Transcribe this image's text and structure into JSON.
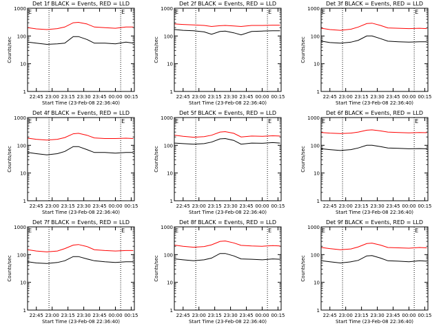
{
  "figure": {
    "background": "#ffffff",
    "axis_color": "#000000",
    "events_color": "#000000",
    "lld_color": "#ff0000",
    "marker_label": "E"
  },
  "chart_data": [
    {
      "type": "line",
      "title": "Det 1f BLACK = Events, RED = LLD",
      "xlabel": "Start Time (23-Feb-08 22:36:40)",
      "ylabel": "Counts/sec",
      "yscale": "log",
      "ylim": [
        1,
        1000
      ],
      "y_ticks": [
        "1",
        "10",
        "100",
        "1000"
      ],
      "x_ticks": [
        "22:45",
        "23:00",
        "23:15",
        "23:30",
        "23:45",
        "00:00",
        "00:15"
      ],
      "x_start": "22:36:40",
      "x_end": "00:18:00",
      "vlines": [
        "22:57:00",
        "00:05:00"
      ],
      "markers": [
        {
          "label": "E",
          "x": "22:36:40"
        },
        {
          "label": "E",
          "x": "00:05:00"
        }
      ],
      "x": [
        "22:37",
        "22:45",
        "22:55",
        "23:05",
        "23:12",
        "23:20",
        "23:25",
        "23:33",
        "23:40",
        "23:50",
        "00:00",
        "00:10",
        "00:17"
      ],
      "series": [
        {
          "values": [
            60,
            55,
            50,
            52,
            55,
            95,
            95,
            75,
            55,
            55,
            52,
            60,
            55
          ],
          "color": "#000000"
        },
        {
          "values": [
            200,
            180,
            170,
            185,
            210,
            300,
            310,
            270,
            210,
            200,
            190,
            210,
            210
          ],
          "color": "#ff0000"
        }
      ]
    },
    {
      "type": "line",
      "title": "Det 2f BLACK = Events, RED = LLD",
      "xlabel": "Start Time (23-Feb-08 22:36:40)",
      "ylabel": "Counts/sec",
      "yscale": "log",
      "ylim": [
        1,
        1000
      ],
      "y_ticks": [
        "1",
        "10",
        "100",
        "1000"
      ],
      "x_ticks": [
        "22:45",
        "23:00",
        "23:15",
        "23:30",
        "23:45",
        "00:00",
        "00:15"
      ],
      "x_start": "22:36:40",
      "x_end": "00:18:00",
      "vlines": [
        "22:57:00",
        "00:05:00"
      ],
      "markers": [
        {
          "label": "E",
          "x": "22:36:40"
        },
        {
          "label": "E",
          "x": "00:05:00"
        }
      ],
      "x": [
        "22:37",
        "22:45",
        "22:55",
        "23:05",
        "23:12",
        "23:20",
        "23:25",
        "23:33",
        "23:40",
        "23:50",
        "00:00",
        "00:10",
        "00:17"
      ],
      "series": [
        {
          "values": [
            170,
            160,
            155,
            140,
            115,
            145,
            150,
            130,
            110,
            145,
            150,
            155,
            155
          ],
          "color": "#000000"
        },
        {
          "values": [
            270,
            260,
            250,
            240,
            220,
            235,
            240,
            230,
            220,
            240,
            240,
            245,
            245
          ],
          "color": "#ff0000"
        }
      ]
    },
    {
      "type": "line",
      "title": "Det 3f BLACK = Events, RED = LLD",
      "xlabel": "Start Time (23-Feb-08 22:36:40)",
      "ylabel": "Counts/sec",
      "yscale": "log",
      "ylim": [
        1,
        1000
      ],
      "y_ticks": [
        "1",
        "10",
        "100",
        "1000"
      ],
      "x_ticks": [
        "22:45",
        "23:00",
        "23:15",
        "23:30",
        "23:45",
        "00:00",
        "00:15"
      ],
      "x_start": "22:36:40",
      "x_end": "00:18:00",
      "vlines": [
        "22:57:00",
        "00:05:00"
      ],
      "markers": [
        {
          "label": "E",
          "x": "22:36:40"
        },
        {
          "label": "E",
          "x": "00:05:00"
        }
      ],
      "x": [
        "22:37",
        "22:45",
        "22:55",
        "23:05",
        "23:12",
        "23:20",
        "23:25",
        "23:33",
        "23:40",
        "23:50",
        "00:00",
        "00:10",
        "00:17"
      ],
      "series": [
        {
          "values": [
            65,
            58,
            55,
            60,
            70,
            100,
            100,
            80,
            65,
            62,
            60,
            62,
            62
          ],
          "color": "#000000"
        },
        {
          "values": [
            190,
            170,
            160,
            175,
            210,
            280,
            290,
            240,
            195,
            190,
            185,
            190,
            185
          ],
          "color": "#ff0000"
        }
      ]
    },
    {
      "type": "line",
      "title": "Det 4f BLACK = Events, RED = LLD",
      "xlabel": "Start Time (23-Feb-08 22:36:40)",
      "ylabel": "Counts/sec",
      "yscale": "log",
      "ylim": [
        1,
        1000
      ],
      "y_ticks": [
        "1",
        "10",
        "100",
        "1000"
      ],
      "x_ticks": [
        "22:45",
        "23:00",
        "23:15",
        "23:30",
        "23:45",
        "00:00",
        "00:15"
      ],
      "x_start": "22:36:40",
      "x_end": "00:18:00",
      "vlines": [
        "22:57:00",
        "00:05:00"
      ],
      "markers": [
        {
          "label": "E",
          "x": "22:36:40"
        },
        {
          "label": "E",
          "x": "00:05:00"
        }
      ],
      "x": [
        "22:37",
        "22:45",
        "22:55",
        "23:05",
        "23:12",
        "23:20",
        "23:25",
        "23:33",
        "23:40",
        "23:50",
        "00:00",
        "00:10",
        "00:17"
      ],
      "series": [
        {
          "values": [
            55,
            50,
            45,
            50,
            60,
            90,
            90,
            70,
            55,
            55,
            52,
            55,
            55
          ],
          "color": "#000000"
        },
        {
          "values": [
            180,
            165,
            155,
            165,
            190,
            260,
            270,
            230,
            185,
            175,
            175,
            180,
            175
          ],
          "color": "#ff0000"
        }
      ]
    },
    {
      "type": "line",
      "title": "Det 5f BLACK = Events, RED = LLD",
      "xlabel": "Start Time (23-Feb-08 22:36:40)",
      "ylabel": "Counts/sec",
      "yscale": "log",
      "ylim": [
        1,
        1000
      ],
      "y_ticks": [
        "1",
        "10",
        "100",
        "1000"
      ],
      "x_ticks": [
        "22:45",
        "23:00",
        "23:15",
        "23:30",
        "23:45",
        "00:00",
        "00:15"
      ],
      "x_start": "22:36:40",
      "x_end": "00:18:00",
      "vlines": [
        "22:57:00",
        "00:05:00"
      ],
      "markers": [
        {
          "label": "E",
          "x": "22:36:40"
        },
        {
          "label": "E",
          "x": "00:05:00"
        }
      ],
      "x": [
        "22:37",
        "22:45",
        "22:55",
        "23:05",
        "23:12",
        "23:20",
        "23:25",
        "23:33",
        "23:40",
        "23:50",
        "00:00",
        "00:10",
        "00:17"
      ],
      "series": [
        {
          "values": [
            120,
            115,
            110,
            115,
            130,
            170,
            175,
            150,
            110,
            120,
            118,
            125,
            120
          ],
          "color": "#000000"
        },
        {
          "values": [
            230,
            210,
            195,
            205,
            230,
            300,
            310,
            270,
            200,
            215,
            210,
            220,
            215
          ],
          "color": "#ff0000"
        }
      ]
    },
    {
      "type": "line",
      "title": "Det 6f BLACK = Events, RED = LLD",
      "xlabel": "Start Time (23-Feb-08 22:36:40)",
      "ylabel": "Counts/sec",
      "yscale": "log",
      "ylim": [
        1,
        1000
      ],
      "y_ticks": [
        "1",
        "10",
        "100",
        "1000"
      ],
      "x_ticks": [
        "22:45",
        "23:00",
        "23:15",
        "23:30",
        "23:45",
        "00:00",
        "00:15"
      ],
      "x_start": "22:36:40",
      "x_end": "00:18:00",
      "vlines": [
        "22:57:00",
        "00:05:00"
      ],
      "markers": [
        {
          "label": "E",
          "x": "22:36:40"
        },
        {
          "label": "E",
          "x": "00:05:00"
        }
      ],
      "x": [
        "22:37",
        "22:45",
        "22:55",
        "23:05",
        "23:12",
        "23:20",
        "23:25",
        "23:33",
        "23:40",
        "23:50",
        "00:00",
        "00:10",
        "00:17"
      ],
      "series": [
        {
          "values": [
            75,
            70,
            65,
            70,
            80,
            100,
            100,
            90,
            80,
            78,
            75,
            76,
            75
          ],
          "color": "#000000"
        },
        {
          "values": [
            290,
            275,
            265,
            275,
            300,
            350,
            360,
            330,
            300,
            290,
            280,
            290,
            285
          ],
          "color": "#ff0000"
        }
      ]
    },
    {
      "type": "line",
      "title": "Det 7f BLACK = Events, RED = LLD",
      "xlabel": "Start Time (23-Feb-08 22:36:40)",
      "ylabel": "Counts/sec",
      "yscale": "log",
      "ylim": [
        1,
        1000
      ],
      "y_ticks": [
        "1",
        "10",
        "100",
        "1000"
      ],
      "x_ticks": [
        "22:45",
        "23:00",
        "23:15",
        "23:30",
        "23:45",
        "00:00",
        "00:15"
      ],
      "x_start": "22:36:40",
      "x_end": "00:18:00",
      "vlines": [
        "22:57:00",
        "00:05:00"
      ],
      "markers": [
        {
          "label": "E",
          "x": "22:36:40"
        },
        {
          "label": "E",
          "x": "00:05:00"
        }
      ],
      "x": [
        "22:37",
        "22:45",
        "22:55",
        "23:05",
        "23:12",
        "23:20",
        "23:25",
        "23:33",
        "23:40",
        "23:50",
        "00:00",
        "00:10",
        "00:17"
      ],
      "series": [
        {
          "values": [
            55,
            50,
            48,
            52,
            60,
            85,
            85,
            70,
            60,
            55,
            52,
            55,
            55
          ],
          "color": "#000000"
        },
        {
          "values": [
            150,
            135,
            125,
            135,
            165,
            220,
            230,
            195,
            150,
            140,
            135,
            140,
            140
          ],
          "color": "#ff0000"
        }
      ]
    },
    {
      "type": "line",
      "title": "Det 8f BLACK = Events, RED = LLD",
      "xlabel": "Start Time (23-Feb-08 22:36:40)",
      "ylabel": "Counts/sec",
      "yscale": "log",
      "ylim": [
        1,
        1000
      ],
      "y_ticks": [
        "1",
        "10",
        "100",
        "1000"
      ],
      "x_ticks": [
        "22:45",
        "23:00",
        "23:15",
        "23:30",
        "23:45",
        "00:00",
        "00:15"
      ],
      "x_start": "22:36:40",
      "x_end": "00:18:00",
      "vlines": [
        "22:57:00",
        "00:05:00"
      ],
      "markers": [
        {
          "label": "E",
          "x": "22:36:40"
        },
        {
          "label": "E",
          "x": "00:05:00"
        }
      ],
      "x": [
        "22:37",
        "22:45",
        "22:55",
        "23:05",
        "23:12",
        "23:20",
        "23:25",
        "23:33",
        "23:40",
        "23:50",
        "00:00",
        "00:10",
        "00:17"
      ],
      "series": [
        {
          "values": [
            70,
            65,
            60,
            65,
            75,
            110,
            110,
            90,
            70,
            68,
            65,
            70,
            68
          ],
          "color": "#000000"
        },
        {
          "values": [
            220,
            200,
            185,
            195,
            225,
            300,
            310,
            265,
            215,
            205,
            200,
            210,
            205
          ],
          "color": "#ff0000"
        }
      ]
    },
    {
      "type": "line",
      "title": "Det 9f BLACK = Events, RED = LLD",
      "xlabel": "Start Time (23-Feb-08 22:36:40)",
      "ylabel": "Counts/sec",
      "yscale": "log",
      "ylim": [
        1,
        1000
      ],
      "y_ticks": [
        "1",
        "10",
        "100",
        "1000"
      ],
      "x_ticks": [
        "22:45",
        "23:00",
        "23:15",
        "23:30",
        "23:45",
        "00:00",
        "00:15"
      ],
      "x_start": "22:36:40",
      "x_end": "00:18:00",
      "vlines": [
        "22:57:00",
        "00:05:00"
      ],
      "markers": [
        {
          "label": "E",
          "x": "22:36:40"
        },
        {
          "label": "E",
          "x": "00:05:00"
        }
      ],
      "x": [
        "22:37",
        "22:45",
        "22:55",
        "23:05",
        "23:12",
        "23:20",
        "23:25",
        "23:33",
        "23:40",
        "23:50",
        "00:00",
        "00:10",
        "00:17"
      ],
      "series": [
        {
          "values": [
            60,
            55,
            50,
            55,
            62,
            90,
            92,
            75,
            60,
            58,
            55,
            60,
            58
          ],
          "color": "#000000"
        },
        {
          "values": [
            180,
            165,
            150,
            160,
            190,
            250,
            260,
            220,
            180,
            175,
            170,
            180,
            175
          ],
          "color": "#ff0000"
        }
      ]
    }
  ]
}
